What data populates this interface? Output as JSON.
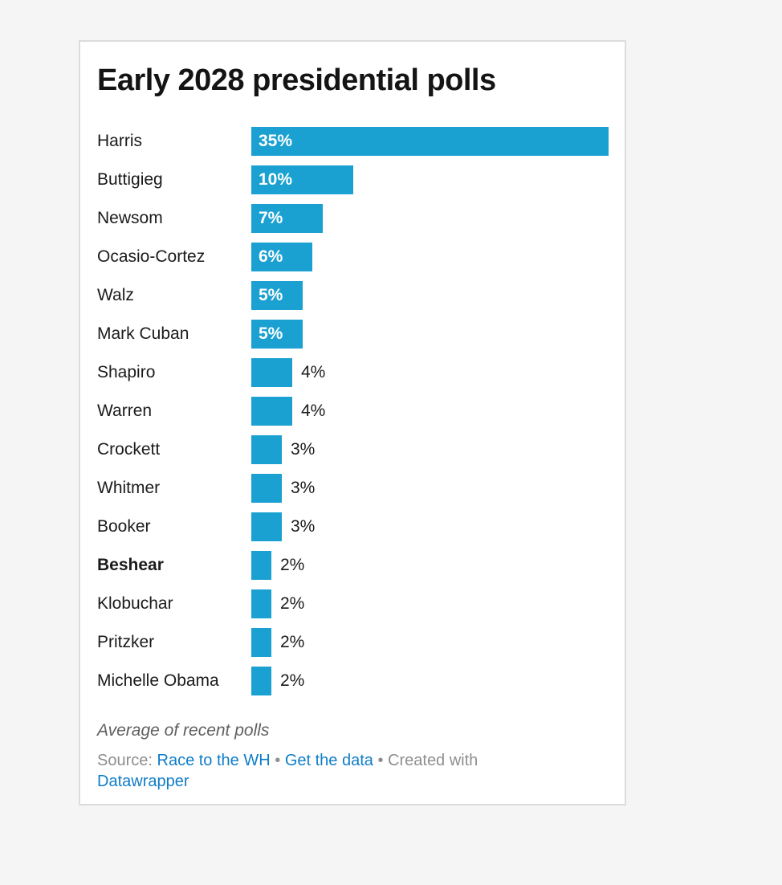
{
  "chart_data": {
    "type": "bar",
    "title": "Early 2028 presidential polls",
    "categories": [
      "Harris",
      "Buttigieg",
      "Newsom",
      "Ocasio-Cortez",
      "Walz",
      "Mark Cuban",
      "Shapiro",
      "Warren",
      "Crockett",
      "Whitmer",
      "Booker",
      "Beshear",
      "Klobuchar",
      "Pritzker",
      "Michelle Obama"
    ],
    "values": [
      35,
      10,
      7,
      6,
      5,
      5,
      4,
      4,
      3,
      3,
      3,
      2,
      2,
      2,
      2
    ],
    "value_suffix": "%",
    "bold_categories": [
      "Beshear"
    ],
    "inside_label_min_value": 5,
    "xlim": [
      0,
      35
    ],
    "xlabel": "",
    "ylabel": "",
    "grid": "off",
    "legend": "none",
    "orientation": "horizontal",
    "bar_color": "#1aa1d1",
    "inside_label_color": "#ffffff",
    "outside_label_color": "#1b1b1b"
  },
  "footer": {
    "note": "Average of recent polls",
    "source_label": "Source:",
    "source_link": "Race to the WH",
    "separator": "•",
    "get_data_link": "Get the data",
    "created_with": "Created with",
    "brand_link": "Datawrapper"
  },
  "colors": {
    "page_background": "#f5f5f5",
    "card_background": "#ffffff",
    "card_border": "#dcdcdc",
    "bar": "#1aa1d1",
    "link": "#0f7dc8",
    "note_text": "#5f5f5f",
    "source_text": "#8e8e8e",
    "title_text": "#141414"
  }
}
